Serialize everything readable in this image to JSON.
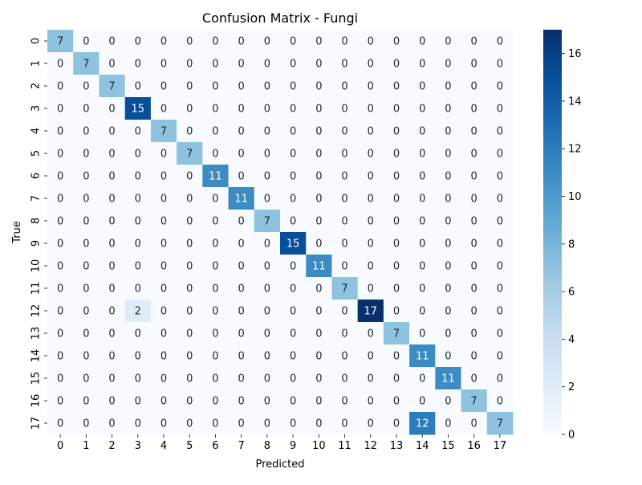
{
  "chart_data": {
    "type": "heatmap",
    "title": "Confusion Matrix - Fungi",
    "xlabel": "Predicted",
    "ylabel": "True",
    "x_categories": [
      "0",
      "1",
      "2",
      "3",
      "4",
      "5",
      "6",
      "7",
      "8",
      "9",
      "10",
      "11",
      "12",
      "13",
      "14",
      "15",
      "16",
      "17"
    ],
    "y_categories": [
      "0",
      "1",
      "2",
      "3",
      "4",
      "5",
      "6",
      "7",
      "8",
      "9",
      "10",
      "11",
      "12",
      "13",
      "14",
      "15",
      "16",
      "17"
    ],
    "values": [
      [
        7,
        0,
        0,
        0,
        0,
        0,
        0,
        0,
        0,
        0,
        0,
        0,
        0,
        0,
        0,
        0,
        0,
        0
      ],
      [
        0,
        7,
        0,
        0,
        0,
        0,
        0,
        0,
        0,
        0,
        0,
        0,
        0,
        0,
        0,
        0,
        0,
        0
      ],
      [
        0,
        0,
        7,
        0,
        0,
        0,
        0,
        0,
        0,
        0,
        0,
        0,
        0,
        0,
        0,
        0,
        0,
        0
      ],
      [
        0,
        0,
        0,
        15,
        0,
        0,
        0,
        0,
        0,
        0,
        0,
        0,
        0,
        0,
        0,
        0,
        0,
        0
      ],
      [
        0,
        0,
        0,
        0,
        7,
        0,
        0,
        0,
        0,
        0,
        0,
        0,
        0,
        0,
        0,
        0,
        0,
        0
      ],
      [
        0,
        0,
        0,
        0,
        0,
        7,
        0,
        0,
        0,
        0,
        0,
        0,
        0,
        0,
        0,
        0,
        0,
        0
      ],
      [
        0,
        0,
        0,
        0,
        0,
        0,
        11,
        0,
        0,
        0,
        0,
        0,
        0,
        0,
        0,
        0,
        0,
        0
      ],
      [
        0,
        0,
        0,
        0,
        0,
        0,
        0,
        11,
        0,
        0,
        0,
        0,
        0,
        0,
        0,
        0,
        0,
        0
      ],
      [
        0,
        0,
        0,
        0,
        0,
        0,
        0,
        0,
        7,
        0,
        0,
        0,
        0,
        0,
        0,
        0,
        0,
        0
      ],
      [
        0,
        0,
        0,
        0,
        0,
        0,
        0,
        0,
        0,
        15,
        0,
        0,
        0,
        0,
        0,
        0,
        0,
        0
      ],
      [
        0,
        0,
        0,
        0,
        0,
        0,
        0,
        0,
        0,
        0,
        11,
        0,
        0,
        0,
        0,
        0,
        0,
        0
      ],
      [
        0,
        0,
        0,
        0,
        0,
        0,
        0,
        0,
        0,
        0,
        0,
        7,
        0,
        0,
        0,
        0,
        0,
        0
      ],
      [
        0,
        0,
        0,
        2,
        0,
        0,
        0,
        0,
        0,
        0,
        0,
        0,
        17,
        0,
        0,
        0,
        0,
        0
      ],
      [
        0,
        0,
        0,
        0,
        0,
        0,
        0,
        0,
        0,
        0,
        0,
        0,
        0,
        7,
        0,
        0,
        0,
        0
      ],
      [
        0,
        0,
        0,
        0,
        0,
        0,
        0,
        0,
        0,
        0,
        0,
        0,
        0,
        0,
        11,
        0,
        0,
        0
      ],
      [
        0,
        0,
        0,
        0,
        0,
        0,
        0,
        0,
        0,
        0,
        0,
        0,
        0,
        0,
        0,
        11,
        0,
        0
      ],
      [
        0,
        0,
        0,
        0,
        0,
        0,
        0,
        0,
        0,
        0,
        0,
        0,
        0,
        0,
        0,
        0,
        7,
        0
      ],
      [
        0,
        0,
        0,
        0,
        0,
        0,
        0,
        0,
        0,
        0,
        0,
        0,
        0,
        0,
        12,
        0,
        0,
        7
      ]
    ],
    "vmin": 0,
    "vmax": 17,
    "colorbar_ticks": [
      0,
      2,
      4,
      6,
      8,
      10,
      12,
      14,
      16
    ],
    "colormap": "Blues",
    "colors": {
      "low": "#f7fbff",
      "high": "#08306b",
      "text_dark": "#262626",
      "text_light": "#ffffff"
    },
    "grid": false,
    "legend": "colorbar-right"
  }
}
